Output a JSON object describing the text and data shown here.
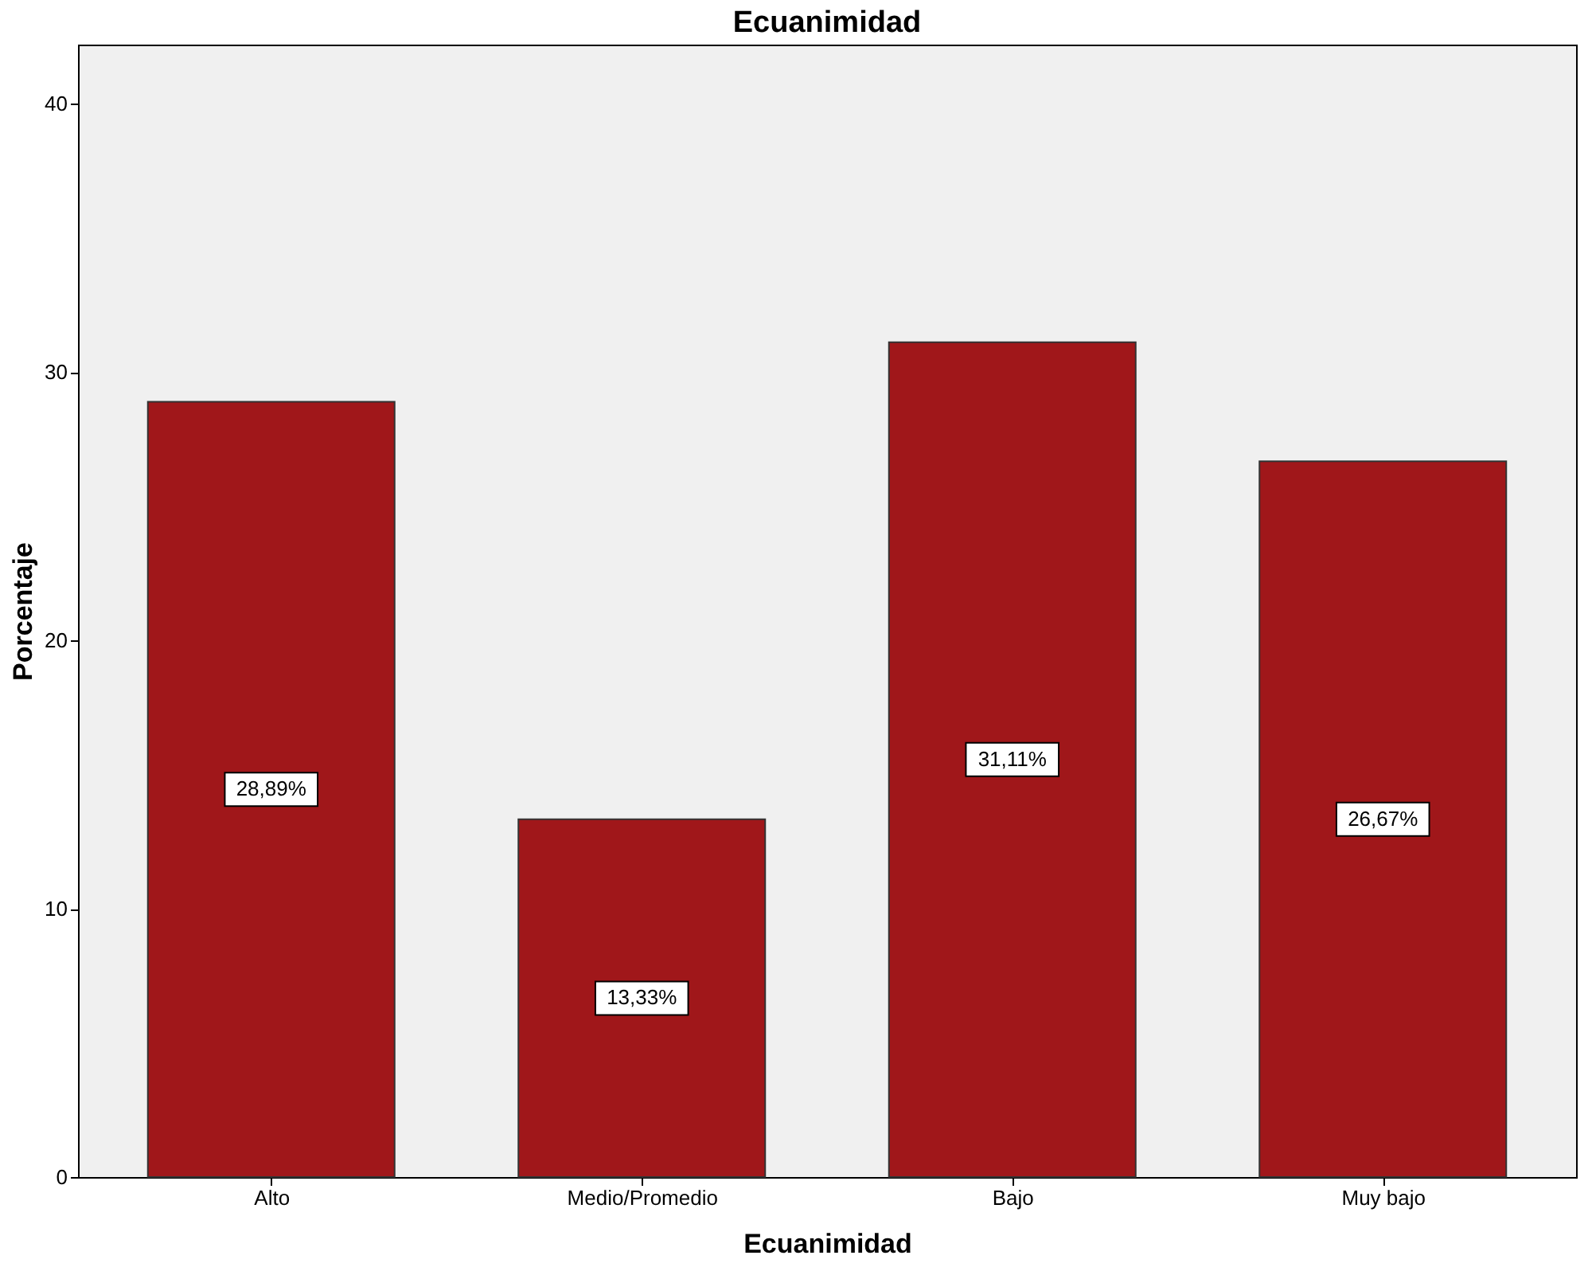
{
  "chart_data": {
    "type": "bar",
    "title": "Ecuanimidad",
    "xlabel": "Ecuanimidad",
    "ylabel": "Porcentaje",
    "categories": [
      "Alto",
      "Medio/Promedio",
      "Bajo",
      "Muy bajo"
    ],
    "values": [
      28.89,
      13.33,
      31.11,
      26.67
    ],
    "value_labels": [
      "28,89%",
      "13,33%",
      "31,11%",
      "26,67%"
    ],
    "color": "#a0171a",
    "ylim": [
      0,
      42.2
    ],
    "yticks": [
      0,
      10,
      20,
      30,
      40
    ],
    "grid": false
  }
}
